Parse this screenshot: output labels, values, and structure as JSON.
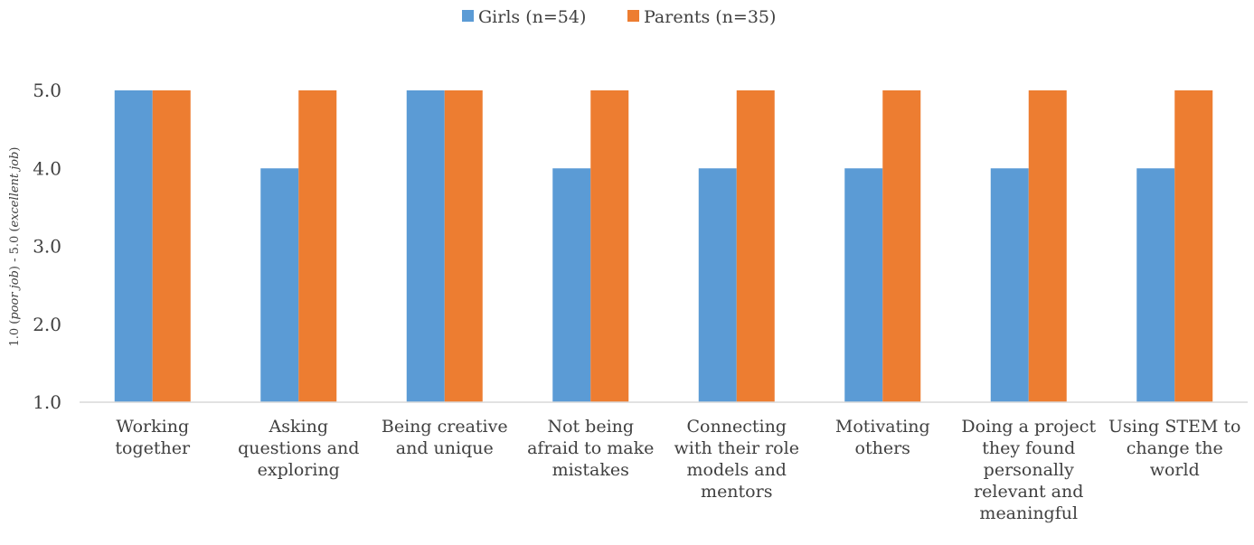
{
  "chart_data": {
    "type": "bar",
    "categories": [
      [
        "Working",
        "together"
      ],
      [
        "Asking",
        "questions and",
        "exploring"
      ],
      [
        "Being creative",
        "and unique"
      ],
      [
        "Not being",
        "afraid to make",
        "mistakes"
      ],
      [
        "Connecting",
        "with their role",
        "models and",
        "mentors"
      ],
      [
        "Motivating",
        "others"
      ],
      [
        "Doing a project",
        "they found",
        "personally",
        "relevant and",
        "meaningful"
      ],
      [
        "Using STEM to",
        "change the",
        "world"
      ]
    ],
    "series": [
      {
        "name": "Girls  (n=54)",
        "values": [
          5,
          4,
          5,
          4,
          4,
          4,
          4,
          4
        ],
        "color": "#5B9BD5"
      },
      {
        "name": "Parents (n=35)",
        "values": [
          5,
          5,
          5,
          5,
          5,
          5,
          5,
          5
        ],
        "color": "#ED7D31"
      }
    ],
    "ylabel": {
      "parts": [
        {
          "text": "1.0 (",
          "italic": false
        },
        {
          "text": "poor job",
          "italic": true
        },
        {
          "text": ") - 5.0 (",
          "italic": false
        },
        {
          "text": "excellent job",
          "italic": true
        },
        {
          "text": ")",
          "italic": false
        }
      ]
    },
    "ylim": [
      1,
      5
    ],
    "yticks": [
      "1.0",
      "2.0",
      "3.0",
      "4.0",
      "5.0"
    ],
    "grid": false,
    "legend": "top-center"
  }
}
